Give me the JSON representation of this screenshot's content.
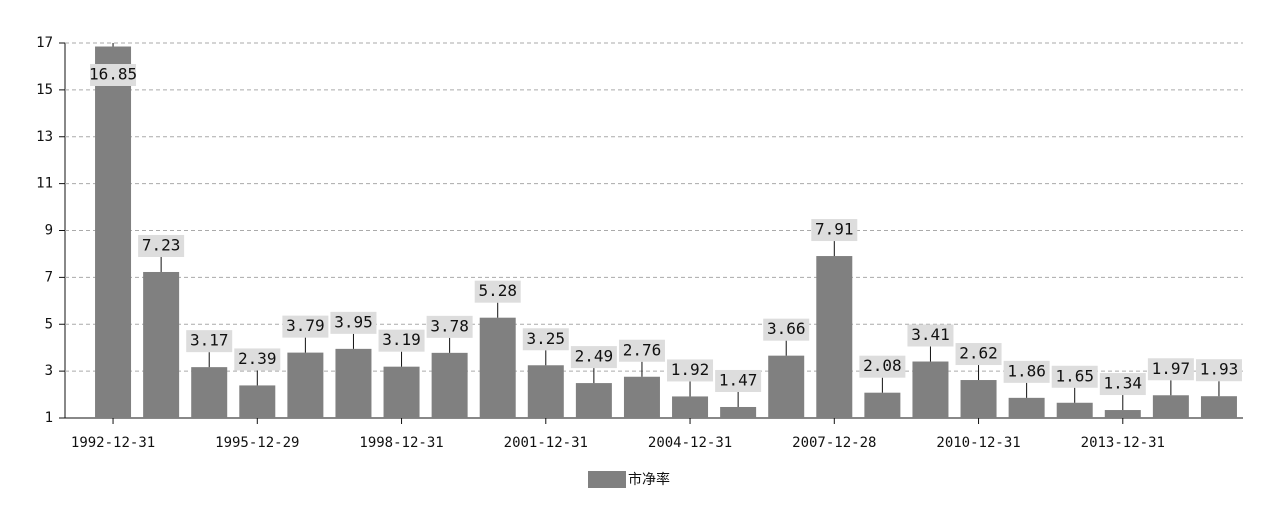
{
  "chart_data": {
    "type": "bar",
    "categories": [
      "1992-12-31",
      null,
      null,
      "1995-12-29",
      null,
      null,
      "1998-12-31",
      null,
      null,
      "2001-12-31",
      null,
      null,
      "2004-12-31",
      null,
      null,
      "2007-12-28",
      null,
      null,
      "2010-12-31",
      null,
      null,
      "2013-12-31",
      null,
      null
    ],
    "series": [
      {
        "name": "市净率",
        "color": "#808080",
        "values": [
          16.85,
          7.23,
          3.17,
          2.39,
          3.79,
          3.95,
          3.19,
          3.78,
          5.28,
          3.25,
          2.49,
          2.76,
          1.92,
          1.47,
          3.66,
          7.91,
          2.08,
          3.41,
          2.62,
          1.86,
          1.65,
          1.34,
          1.97,
          1.93
        ]
      }
    ],
    "ylim": [
      1,
      17
    ],
    "yticks": [
      1,
      3,
      5,
      7,
      9,
      11,
      13,
      15,
      17
    ],
    "grid": true
  }
}
